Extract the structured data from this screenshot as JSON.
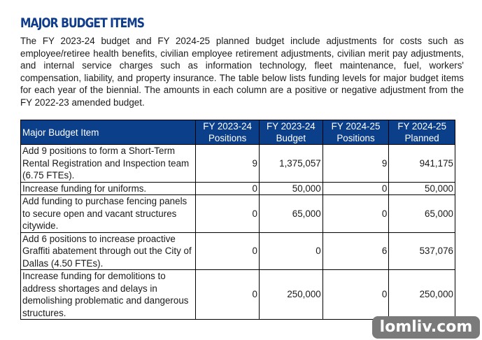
{
  "title": "MAJOR BUDGET ITEMS",
  "paragraph": "The FY 2023-24 budget and FY 2024-25 planned budget include adjustments for costs such as employee/retiree health benefits, civilian employee retirement adjustments, civilian merit pay adjustments, and internal service charges such as information technology, fleet maintenance, fuel, workers' compensation, liability, and property insurance. The table below lists funding levels for major budget items for each year of the biennial. The amounts in each column are a positive or negative adjustment from the FY 2022-23 amended budget.",
  "table": {
    "header_color": "#0b3f8a",
    "headers": [
      {
        "line1": "Major Budget Item",
        "line2": ""
      },
      {
        "line1": "FY 2023-24",
        "line2": "Positions"
      },
      {
        "line1": "FY 2023-24",
        "line2": "Budget"
      },
      {
        "line1": "FY 2024-25",
        "line2": "Positions"
      },
      {
        "line1": "FY 2024-25",
        "line2": "Planned"
      }
    ],
    "rows": [
      {
        "item": "Add 9 positions to form a Short-Term Rental Registration and Inspection team (6.75 FTEs).",
        "pos1": "9",
        "budget": "1,375,057",
        "pos2": "9",
        "planned": "941,175"
      },
      {
        "item": "Increase funding for uniforms.",
        "pos1": "0",
        "budget": "50,000",
        "pos2": "0",
        "planned": "50,000"
      },
      {
        "item": "Add funding to purchase fencing panels to secure open and vacant structures citywide.",
        "pos1": "0",
        "budget": "65,000",
        "pos2": "0",
        "planned": "65,000"
      },
      {
        "item": "Add 6 positions to increase proactive Graffiti abatement through out the City of Dallas (4.50 FTEs).",
        "pos1": "0",
        "budget": "0",
        "pos2": "6",
        "planned": "537,076"
      },
      {
        "item": "Increase funding for demolitions to address shortages and delays in demolishing problematic and dangerous structures.",
        "pos1": "0",
        "budget": "250,000",
        "pos2": "0",
        "planned": "250,000"
      }
    ]
  },
  "watermark": "lomliv.com"
}
